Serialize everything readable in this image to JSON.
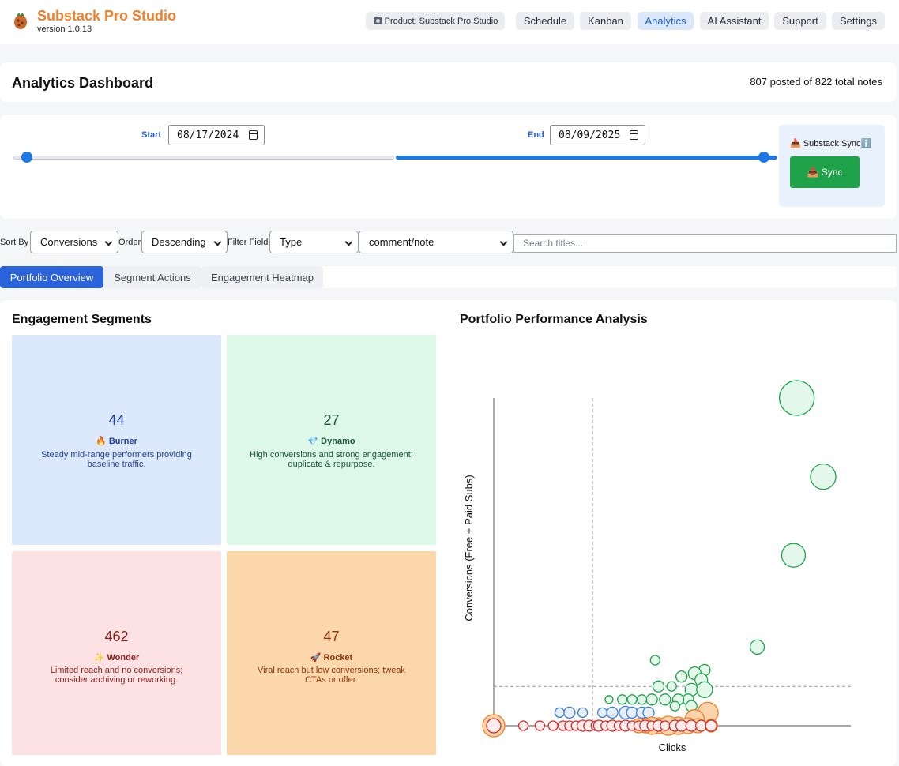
{
  "app": {
    "title": "Substack Pro Studio",
    "version": "version 1.0.13",
    "product_label": "Product: Substack Pro Studio"
  },
  "nav": [
    {
      "label": "Schedule",
      "active": false
    },
    {
      "label": "Kanban",
      "active": false
    },
    {
      "label": "Analytics",
      "active": true
    },
    {
      "label": "AI Assistant",
      "active": false
    },
    {
      "label": "Support",
      "active": false
    },
    {
      "label": "Settings",
      "active": false
    }
  ],
  "dashboard": {
    "title": "Analytics Dashboard",
    "notes_summary": "807 posted of 822 total notes"
  },
  "date_range": {
    "start_label": "Start",
    "start_value": "08/17/2024",
    "end_label": "End",
    "end_value": "08/09/2025"
  },
  "sync": {
    "label": "📥 Substack Sync",
    "info_icon": "ℹ️",
    "button_label": "📥 Sync"
  },
  "controls": {
    "sort_by_label": "Sort By",
    "sort_by_value": "Conversions",
    "order_label": "Order",
    "order_value": "Descending",
    "filter_field_label": "Filter Field",
    "filter_field_value": "Type",
    "filter_value": "comment/note",
    "search_placeholder": "Search titles..."
  },
  "tabs": [
    {
      "label": "Portfolio Overview",
      "active": true
    },
    {
      "label": "Segment Actions",
      "active": false
    },
    {
      "label": "Engagement Heatmap",
      "active": false
    }
  ],
  "segments_title": "Engagement Segments",
  "segments": [
    {
      "count": "44",
      "name": "🔥 Burner",
      "description": "Steady mid-range performers providing baseline traffic.",
      "bg": "#dce9fc",
      "fg": "#1f3f9c"
    },
    {
      "count": "27",
      "name": "💎 Dynamo",
      "description": "High conversions and strong engagement; duplicate & repurpose.",
      "bg": "#ddf8e6",
      "fg": "#17563a"
    },
    {
      "count": "462",
      "name": "✨ Wonder",
      "description": "Limited reach and no conversions; consider archiving or reworking.",
      "bg": "#fce2e2",
      "fg": "#8a1f1f"
    },
    {
      "count": "47",
      "name": "🚀 Rocket",
      "description": "Viral reach but low conversions; tweak CTAs or offer.",
      "bg": "#fcd7ac",
      "fg": "#8a3306"
    }
  ],
  "chart_title": "Portfolio Performance Analysis",
  "chart_data": {
    "type": "scatter",
    "xlabel": "Clicks",
    "ylabel": "Conversions (Free + Paid Subs)",
    "x_threshold": 0.3,
    "y_threshold": 0.12,
    "series": [
      {
        "color": "#1fa34a",
        "fill": "#e3f7ea",
        "points": [
          [
            0.92,
            1.0,
            22
          ],
          [
            1.0,
            0.76,
            16
          ],
          [
            0.91,
            0.52,
            15
          ],
          [
            0.8,
            0.24,
            9
          ],
          [
            0.49,
            0.2,
            6
          ],
          [
            0.64,
            0.17,
            7
          ],
          [
            0.57,
            0.15,
            7
          ],
          [
            0.61,
            0.16,
            8
          ],
          [
            0.63,
            0.14,
            8
          ],
          [
            0.5,
            0.12,
            7
          ],
          [
            0.54,
            0.12,
            6
          ],
          [
            0.6,
            0.11,
            8
          ],
          [
            0.64,
            0.11,
            10
          ],
          [
            0.59,
            0.08,
            7
          ],
          [
            0.56,
            0.08,
            7
          ],
          [
            0.52,
            0.08,
            7
          ],
          [
            0.48,
            0.08,
            7
          ],
          [
            0.45,
            0.08,
            6
          ],
          [
            0.42,
            0.08,
            6
          ],
          [
            0.39,
            0.08,
            6
          ],
          [
            0.35,
            0.08,
            5
          ],
          [
            0.55,
            0.06,
            6
          ],
          [
            0.6,
            0.06,
            7
          ]
        ]
      },
      {
        "color": "#3b7ed6",
        "fill": "#e6effb",
        "points": [
          [
            0.2,
            0.04,
            6
          ],
          [
            0.23,
            0.04,
            7
          ],
          [
            0.27,
            0.04,
            6
          ],
          [
            0.33,
            0.04,
            6
          ],
          [
            0.36,
            0.04,
            7
          ],
          [
            0.4,
            0.04,
            8
          ],
          [
            0.42,
            0.04,
            7
          ],
          [
            0.45,
            0.04,
            7
          ],
          [
            0.47,
            0.04,
            7
          ]
        ]
      },
      {
        "color": "#f07d22",
        "fill": "#fbd4ab",
        "points": [
          [
            0.0,
            0.0,
            14
          ],
          [
            0.65,
            0.04,
            13
          ],
          [
            0.61,
            0.02,
            12
          ],
          [
            0.56,
            0.0,
            11
          ],
          [
            0.5,
            0.0,
            10
          ],
          [
            0.48,
            0.0,
            11
          ],
          [
            0.53,
            0.0,
            12
          ],
          [
            0.59,
            0.0,
            10
          ],
          [
            0.62,
            0.0,
            9
          ],
          [
            0.46,
            0.0,
            9
          ],
          [
            0.44,
            0.0,
            9
          ],
          [
            0.66,
            0.0,
            8
          ]
        ]
      },
      {
        "color": "#d62828",
        "fill": "#fdecec",
        "points": [
          [
            0.0,
            0.0,
            9
          ],
          [
            0.09,
            0.0,
            6
          ],
          [
            0.14,
            0.0,
            6
          ],
          [
            0.18,
            0.0,
            6
          ],
          [
            0.21,
            0.0,
            6
          ],
          [
            0.23,
            0.0,
            6
          ],
          [
            0.25,
            0.0,
            6
          ],
          [
            0.27,
            0.0,
            7
          ],
          [
            0.29,
            0.0,
            7
          ],
          [
            0.31,
            0.0,
            6
          ],
          [
            0.32,
            0.0,
            7
          ],
          [
            0.34,
            0.0,
            6
          ],
          [
            0.36,
            0.0,
            7
          ],
          [
            0.38,
            0.0,
            6
          ],
          [
            0.4,
            0.0,
            7
          ],
          [
            0.42,
            0.0,
            6
          ],
          [
            0.44,
            0.0,
            6
          ],
          [
            0.46,
            0.0,
            7
          ],
          [
            0.48,
            0.0,
            6
          ],
          [
            0.5,
            0.0,
            7
          ],
          [
            0.52,
            0.0,
            6
          ],
          [
            0.55,
            0.0,
            7
          ],
          [
            0.57,
            0.0,
            7
          ],
          [
            0.6,
            0.0,
            7
          ],
          [
            0.63,
            0.0,
            7
          ],
          [
            0.66,
            0.0,
            7
          ]
        ]
      }
    ]
  }
}
